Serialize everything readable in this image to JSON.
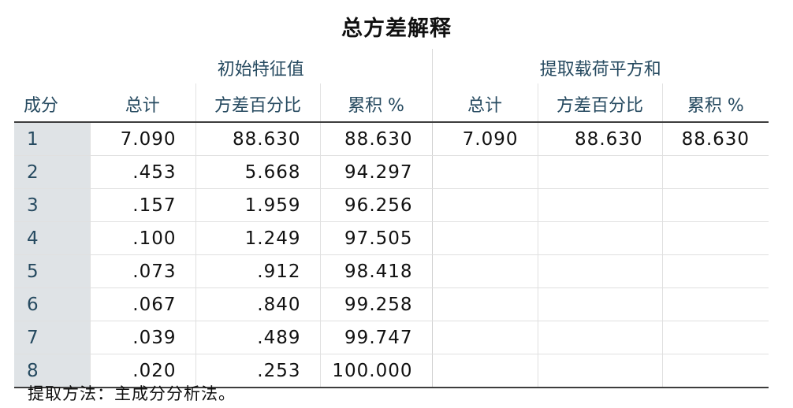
{
  "title": "总方差解释",
  "header": {
    "row_label": "成分",
    "group_initial": "初始特征值",
    "group_extraction": "提取载荷平方和",
    "col_total": "总计",
    "col_variance_pct": "方差百分比",
    "col_cumulative_pct": "累积 %"
  },
  "rows": [
    {
      "component": "1",
      "total": "7.090",
      "var_pct": "88.630",
      "cum_pct": "88.630",
      "ex_total": "7.090",
      "ex_var_pct": "88.630",
      "ex_cum_pct": "88.630"
    },
    {
      "component": "2",
      "total": ".453",
      "var_pct": "5.668",
      "cum_pct": "94.297",
      "ex_total": "",
      "ex_var_pct": "",
      "ex_cum_pct": ""
    },
    {
      "component": "3",
      "total": ".157",
      "var_pct": "1.959",
      "cum_pct": "96.256",
      "ex_total": "",
      "ex_var_pct": "",
      "ex_cum_pct": ""
    },
    {
      "component": "4",
      "total": ".100",
      "var_pct": "1.249",
      "cum_pct": "97.505",
      "ex_total": "",
      "ex_var_pct": "",
      "ex_cum_pct": ""
    },
    {
      "component": "5",
      "total": ".073",
      "var_pct": ".912",
      "cum_pct": "98.418",
      "ex_total": "",
      "ex_var_pct": "",
      "ex_cum_pct": ""
    },
    {
      "component": "6",
      "total": ".067",
      "var_pct": ".840",
      "cum_pct": "99.258",
      "ex_total": "",
      "ex_var_pct": "",
      "ex_cum_pct": ""
    },
    {
      "component": "7",
      "total": ".039",
      "var_pct": ".489",
      "cum_pct": "99.747",
      "ex_total": "",
      "ex_var_pct": "",
      "ex_cum_pct": ""
    },
    {
      "component": "8",
      "total": ".020",
      "var_pct": ".253",
      "cum_pct": "100.000",
      "ex_total": "",
      "ex_var_pct": "",
      "ex_cum_pct": ""
    }
  ],
  "footnote": "提取方法：主成分分析法。"
}
